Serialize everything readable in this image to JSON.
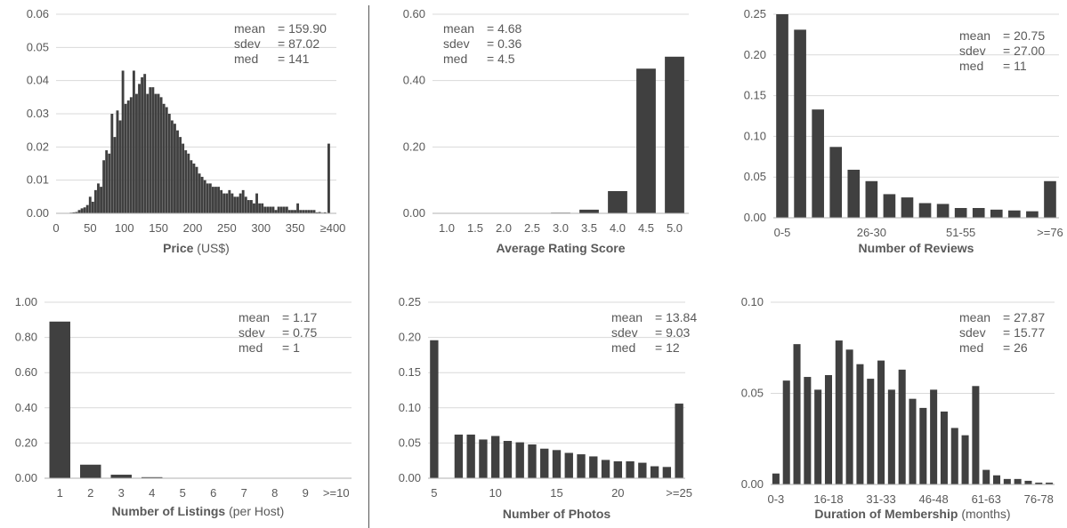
{
  "chart_data": [
    {
      "type": "bar",
      "xlabel_bold": "Price",
      "xlabel_rest": " (US$)",
      "ylim": [
        0,
        0.06
      ],
      "yticks": [
        "0.00",
        "0.01",
        "0.02",
        "0.03",
        "0.04",
        "0.05",
        "0.06"
      ],
      "ytick_values": [
        0,
        0.01,
        0.02,
        0.03,
        0.04,
        0.05,
        0.06
      ],
      "xlim": [
        0,
        400
      ],
      "xticks": [
        "0",
        "50",
        "100",
        "150",
        "200",
        "250",
        "300",
        "350",
        "≥400"
      ],
      "xtick_values": [
        0,
        50,
        100,
        150,
        200,
        250,
        300,
        350,
        400
      ],
      "bin_width": 4,
      "x": [
        20,
        24,
        28,
        32,
        36,
        40,
        44,
        48,
        52,
        56,
        60,
        64,
        68,
        72,
        76,
        80,
        84,
        88,
        92,
        96,
        100,
        104,
        108,
        112,
        116,
        120,
        124,
        128,
        132,
        136,
        140,
        144,
        148,
        152,
        156,
        160,
        164,
        168,
        172,
        176,
        180,
        184,
        188,
        192,
        196,
        200,
        204,
        208,
        212,
        216,
        220,
        224,
        228,
        232,
        236,
        240,
        244,
        248,
        252,
        256,
        260,
        264,
        268,
        272,
        276,
        280,
        284,
        288,
        292,
        296,
        300,
        304,
        308,
        312,
        316,
        320,
        324,
        328,
        332,
        336,
        340,
        344,
        348,
        352,
        356,
        360,
        364,
        368,
        372,
        376,
        380,
        384,
        388,
        392,
        396
      ],
      "values": [
        0.0002,
        0.0003,
        0.0004,
        0.001,
        0.0015,
        0.0018,
        0.0025,
        0.005,
        0.0035,
        0.007,
        0.009,
        0.008,
        0.016,
        0.019,
        0.018,
        0.03,
        0.023,
        0.031,
        0.028,
        0.043,
        0.033,
        0.034,
        0.035,
        0.043,
        0.036,
        0.039,
        0.041,
        0.042,
        0.036,
        0.038,
        0.038,
        0.036,
        0.036,
        0.035,
        0.033,
        0.032,
        0.03,
        0.028,
        0.027,
        0.025,
        0.023,
        0.021,
        0.019,
        0.018,
        0.016,
        0.015,
        0.014,
        0.012,
        0.011,
        0.01,
        0.009,
        0.009,
        0.008,
        0.008,
        0.008,
        0.007,
        0.006,
        0.006,
        0.007,
        0.006,
        0.005,
        0.005,
        0.006,
        0.007,
        0.005,
        0.004,
        0.004,
        0.003,
        0.006,
        0.003,
        0.003,
        0.002,
        0.002,
        0.002,
        0.002,
        0.001,
        0.002,
        0.002,
        0.002,
        0.002,
        0.001,
        0.001,
        0.001,
        0.003,
        0.001,
        0.001,
        0.001,
        0.001,
        0.001,
        0.001,
        0.0003,
        0.0004,
        0.0002,
        0.0003,
        0.021
      ],
      "stats": [
        {
          "label": "mean",
          "value": "= 159.90"
        },
        {
          "label": "sdev",
          "value": "= 87.02"
        },
        {
          "label": "med",
          "value": "= 141"
        }
      ]
    },
    {
      "type": "bar",
      "xlabel_bold": "Average Rating Score",
      "xlabel_rest": "",
      "ylim": [
        0,
        0.6
      ],
      "yticks": [
        "0.00",
        "0.20",
        "0.40",
        "0.60"
      ],
      "ytick_values": [
        0,
        0.2,
        0.4,
        0.6
      ],
      "categories": [
        "1.0",
        "1.5",
        "2.0",
        "2.5",
        "3.0",
        "3.5",
        "4.0",
        "4.5",
        "5.0"
      ],
      "values": [
        0.0002,
        0.0002,
        0.0005,
        0.0005,
        0.002,
        0.011,
        0.067,
        0.436,
        0.472
      ],
      "stats": [
        {
          "label": "mean",
          "value": "= 4.68"
        },
        {
          "label": "sdev",
          "value": "= 0.36"
        },
        {
          "label": "med",
          "value": "= 4.5"
        }
      ]
    },
    {
      "type": "bar",
      "xlabel_bold": "Number of Reviews",
      "xlabel_rest": "",
      "ylim": [
        0,
        0.25
      ],
      "yticks": [
        "0.00",
        "0.05",
        "0.10",
        "0.15",
        "0.20",
        "0.25"
      ],
      "ytick_values": [
        0,
        0.05,
        0.1,
        0.15,
        0.2,
        0.25
      ],
      "categories": [
        "0-5",
        "",
        "",
        "",
        "",
        "26-30",
        "",
        "",
        "",
        "",
        "51-55",
        "",
        "",
        "",
        "",
        ">=76"
      ],
      "values": [
        0.25,
        0.231,
        0.133,
        0.087,
        0.059,
        0.045,
        0.029,
        0.025,
        0.018,
        0.017,
        0.012,
        0.012,
        0.01,
        0.009,
        0.008,
        0.045
      ],
      "stats": [
        {
          "label": "mean",
          "value": "= 20.75"
        },
        {
          "label": "sdev",
          "value": "= 27.00"
        },
        {
          "label": "med",
          "value": "= 11"
        }
      ]
    },
    {
      "type": "bar",
      "xlabel_bold": "Number of Listings",
      "xlabel_rest": " (per Host)",
      "ylim": [
        0,
        1.0
      ],
      "yticks": [
        "0.00",
        "0.20",
        "0.40",
        "0.60",
        "0.80",
        "1.00"
      ],
      "ytick_values": [
        0,
        0.2,
        0.4,
        0.6,
        0.8,
        1.0
      ],
      "categories": [
        "1",
        "2",
        "3",
        "4",
        "5",
        "6",
        "7",
        "8",
        "9",
        ">=10"
      ],
      "values": [
        0.89,
        0.077,
        0.02,
        0.006,
        0.002,
        0.001,
        0.0005,
        0.0004,
        0.0003,
        0.0015
      ],
      "stats": [
        {
          "label": "mean",
          "value": "= 1.17"
        },
        {
          "label": "sdev",
          "value": "= 0.75"
        },
        {
          "label": "med",
          "value": "= 1"
        }
      ]
    },
    {
      "type": "bar",
      "xlabel_bold": "Number of Photos",
      "xlabel_rest": "",
      "ylim": [
        0,
        0.25
      ],
      "yticks": [
        "0.00",
        "0.05",
        "0.10",
        "0.15",
        "0.20",
        "0.25"
      ],
      "ytick_values": [
        0,
        0.05,
        0.1,
        0.15,
        0.2,
        0.25
      ],
      "categories": [
        "5",
        "",
        "",
        "",
        "",
        "10",
        "",
        "",
        "",
        "",
        "15",
        "",
        "",
        "",
        "",
        "20",
        "",
        "",
        "",
        "",
        ">=25"
      ],
      "values": [
        0.196,
        0,
        0.062,
        0.062,
        0.055,
        0.06,
        0.053,
        0.051,
        0.048,
        0.042,
        0.04,
        0.036,
        0.034,
        0.031,
        0.026,
        0.024,
        0.024,
        0.022,
        0.017,
        0.016,
        0.106
      ],
      "stats": [
        {
          "label": "mean",
          "value": "= 13.84"
        },
        {
          "label": "sdev",
          "value": "= 9.03"
        },
        {
          "label": "med",
          "value": "= 12"
        }
      ]
    },
    {
      "type": "bar",
      "xlabel_bold": "Duration of Membership",
      "xlabel_rest": " (months)",
      "ylim": [
        0,
        0.1
      ],
      "yticks": [
        "0.00",
        "0.05",
        "0.10"
      ],
      "ytick_values": [
        0,
        0.05,
        0.1
      ],
      "categories": [
        "0-3",
        "",
        "",
        "",
        "",
        "16-18",
        "",
        "",
        "",
        "",
        "31-33",
        "",
        "",
        "",
        "",
        "46-48",
        "",
        "",
        "",
        "",
        "61-63",
        "",
        "",
        "",
        "",
        "76-78",
        ""
      ],
      "values": [
        0.006,
        0.057,
        0.077,
        0.059,
        0.052,
        0.06,
        0.079,
        0.074,
        0.066,
        0.058,
        0.068,
        0.052,
        0.063,
        0.047,
        0.042,
        0.052,
        0.04,
        0.031,
        0.027,
        0.054,
        0.008,
        0.005,
        0.003,
        0.003,
        0.002,
        0.001,
        0.001
      ],
      "stats": [
        {
          "label": "mean",
          "value": "= 27.87"
        },
        {
          "label": "sdev",
          "value": "= 15.77"
        },
        {
          "label": "med",
          "value": "= 26"
        }
      ]
    }
  ],
  "colors": {
    "bar": "#404040",
    "axis": "#b0b0b0",
    "grid": "#d9d9d9",
    "text": "#595959",
    "divider": "#555555"
  }
}
